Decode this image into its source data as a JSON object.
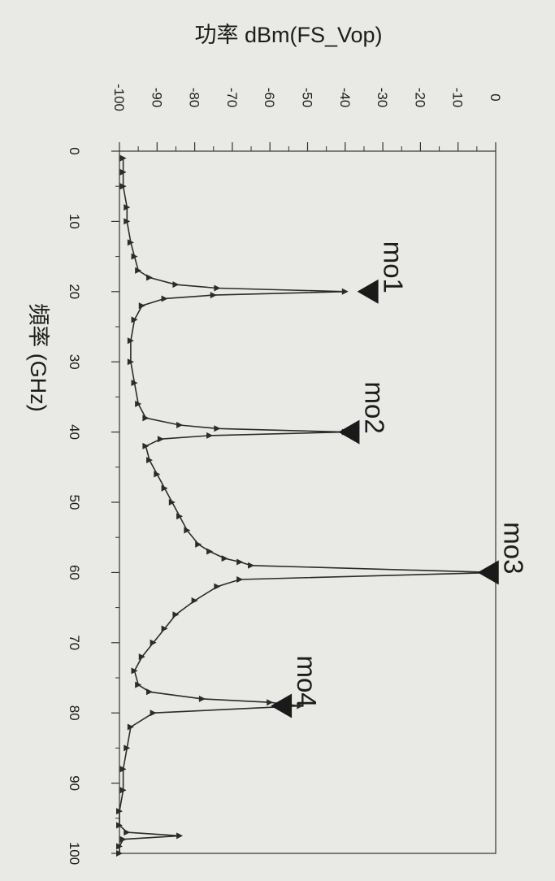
{
  "chart_data": {
    "type": "line",
    "orientation": "rotated-90-clockwise",
    "title": "",
    "xlabel": "頻率 (GHz)",
    "ylabel": "功率 dBm(FS_Vop)",
    "xlim": [
      0,
      100
    ],
    "ylim": [
      -100,
      0
    ],
    "x_ticks": [
      "0",
      "10",
      "20",
      "30",
      "40",
      "50",
      "60",
      "70",
      "80",
      "90",
      "100"
    ],
    "y_ticks": [
      "-100",
      "-90",
      "-80",
      "-70",
      "-60",
      "-50",
      "-40",
      "-30",
      "-20",
      "-10",
      "0"
    ],
    "grid": false,
    "series": [
      {
        "x": [
          1,
          3,
          5,
          8,
          10,
          13,
          15,
          17,
          18,
          19,
          19.5,
          20,
          20.5,
          21,
          22,
          24,
          27,
          30,
          33,
          36,
          38,
          39,
          39.5,
          40,
          40.5,
          41,
          42,
          44,
          46,
          48,
          50,
          52,
          54,
          56,
          57,
          58,
          58.5,
          59,
          60,
          61,
          62,
          64,
          66,
          68,
          70,
          72,
          74,
          76,
          77,
          78,
          78.5,
          79,
          80,
          82,
          85,
          88,
          91,
          94,
          96,
          97,
          97.5,
          98,
          99,
          100
        ],
        "values": [
          -99,
          -99,
          -99,
          -98,
          -98,
          -97,
          -96,
          -95,
          -92,
          -85,
          -74,
          -40,
          -75,
          -88,
          -94,
          -96,
          -97,
          -97,
          -96,
          -95,
          -93,
          -84,
          -74,
          -40,
          -76,
          -89,
          -93,
          -92,
          -90,
          -88,
          -86,
          -84,
          -82,
          -79,
          -76,
          -72,
          -68,
          -65,
          0,
          -68,
          -74,
          -80,
          -85,
          -88,
          -91,
          -94,
          -96,
          -95,
          -92,
          -78,
          -60,
          -52,
          -91,
          -97,
          -98,
          -99,
          -99,
          -100,
          -100,
          -98,
          -84,
          -99,
          -100,
          -100
        ]
      }
    ],
    "markers": [
      {
        "label": "mo1",
        "x": 20,
        "y": -34
      },
      {
        "label": "mo2",
        "x": 40,
        "y": -39
      },
      {
        "label": "mo3",
        "x": 60,
        "y": -2
      },
      {
        "label": "mo4",
        "x": 79,
        "y": -57
      }
    ]
  }
}
